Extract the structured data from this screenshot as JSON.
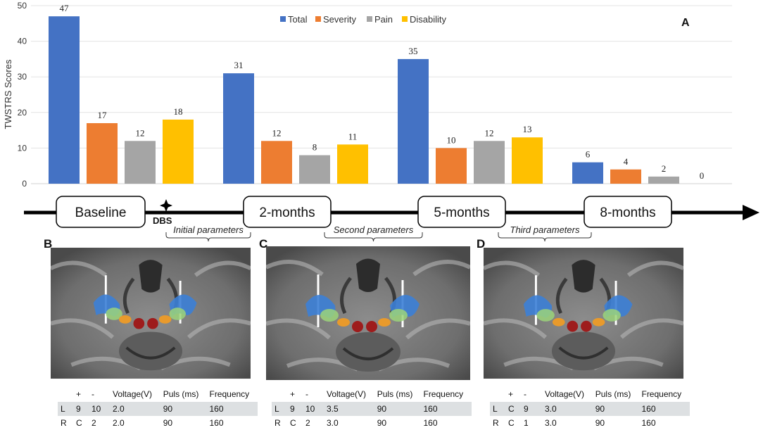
{
  "chart_data": {
    "type": "bar",
    "title": "",
    "panel_label": "A",
    "ylabel": "TWSTRS Scores",
    "xlabel": "",
    "ylim": [
      0,
      50
    ],
    "yticks": [
      0,
      10,
      20,
      30,
      40,
      50
    ],
    "categories": [
      "Baseline",
      "2-months",
      "5-months",
      "8-months"
    ],
    "series": [
      {
        "name": "Total",
        "color": "#4472c4",
        "values": [
          47,
          31,
          35,
          6
        ]
      },
      {
        "name": "Severity",
        "color": "#ed7d31",
        "values": [
          17,
          12,
          10,
          4
        ]
      },
      {
        "name": "Pain",
        "color": "#a5a5a5",
        "values": [
          12,
          8,
          12,
          2
        ]
      },
      {
        "name": "Disability",
        "color": "#ffc000",
        "values": [
          18,
          11,
          13,
          0
        ]
      }
    ],
    "legend_position": "top",
    "timeline": {
      "milestones": [
        "Baseline",
        "2-months",
        "5-months",
        "8-months"
      ],
      "event_label": "DBS",
      "brace_labels": [
        "Initial parameters",
        "Second parameters",
        "Third parameters"
      ]
    }
  },
  "panels": [
    {
      "letter": "B",
      "table": {
        "headers": [
          "",
          "+",
          "-",
          "Voltage(V)",
          "Puls (ms)",
          "Frequency"
        ],
        "rows": [
          [
            "L",
            "9",
            "10",
            "2.0",
            "90",
            "160"
          ],
          [
            "R",
            "C",
            "2",
            "2.0",
            "90",
            "160"
          ]
        ]
      }
    },
    {
      "letter": "C",
      "table": {
        "headers": [
          "",
          "+",
          "-",
          "Voltage(V)",
          "Puls (ms)",
          "Frequency"
        ],
        "rows": [
          [
            "L",
            "9",
            "10",
            "3.5",
            "90",
            "160"
          ],
          [
            "R",
            "C",
            "2",
            "3.0",
            "90",
            "160"
          ]
        ]
      }
    },
    {
      "letter": "D",
      "table": {
        "headers": [
          "",
          "+",
          "-",
          "Voltage(V)",
          "Puls (ms)",
          "Frequency"
        ],
        "rows": [
          [
            "L",
            "C",
            "9",
            "3.0",
            "90",
            "160"
          ],
          [
            "R",
            "C",
            "1",
            "3.0",
            "90",
            "160"
          ]
        ]
      }
    }
  ]
}
